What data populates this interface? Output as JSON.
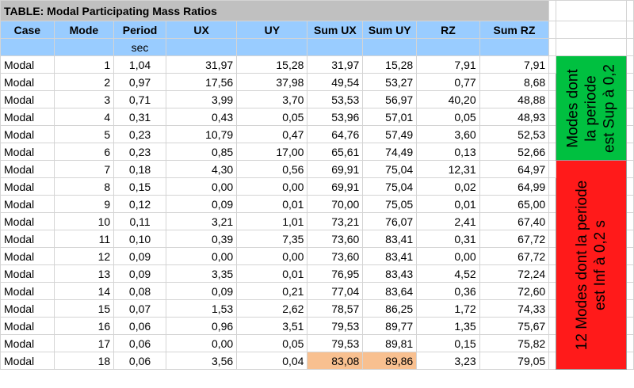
{
  "title": "TABLE:  Modal Participating Mass Ratios",
  "headers": [
    "Case",
    "Mode",
    "Period",
    "UX",
    "UY",
    "Sum UX",
    "Sum UY",
    "RZ",
    "Sum RZ"
  ],
  "units": [
    "",
    "",
    "sec",
    "",
    "",
    "",
    "",
    "",
    ""
  ],
  "rows": [
    [
      "Modal",
      "1",
      "1,04",
      "31,97",
      "15,28",
      "31,97",
      "15,28",
      "7,91",
      "7,91"
    ],
    [
      "Modal",
      "2",
      "0,97",
      "17,56",
      "37,98",
      "49,54",
      "53,27",
      "0,77",
      "8,68"
    ],
    [
      "Modal",
      "3",
      "0,71",
      "3,99",
      "3,70",
      "53,53",
      "56,97",
      "40,20",
      "48,88"
    ],
    [
      "Modal",
      "4",
      "0,31",
      "0,43",
      "0,05",
      "53,96",
      "57,01",
      "0,05",
      "48,93"
    ],
    [
      "Modal",
      "5",
      "0,23",
      "10,79",
      "0,47",
      "64,76",
      "57,49",
      "3,60",
      "52,53"
    ],
    [
      "Modal",
      "6",
      "0,23",
      "0,85",
      "17,00",
      "65,61",
      "74,49",
      "0,13",
      "52,66"
    ],
    [
      "Modal",
      "7",
      "0,18",
      "4,30",
      "0,56",
      "69,91",
      "75,04",
      "12,31",
      "64,97"
    ],
    [
      "Modal",
      "8",
      "0,15",
      "0,00",
      "0,00",
      "69,91",
      "75,04",
      "0,02",
      "64,99"
    ],
    [
      "Modal",
      "9",
      "0,12",
      "0,09",
      "0,01",
      "70,00",
      "75,05",
      "0,01",
      "65,00"
    ],
    [
      "Modal",
      "10",
      "0,11",
      "3,21",
      "1,01",
      "73,21",
      "76,07",
      "2,41",
      "67,40"
    ],
    [
      "Modal",
      "11",
      "0,10",
      "0,39",
      "7,35",
      "73,60",
      "83,41",
      "0,31",
      "67,72"
    ],
    [
      "Modal",
      "12",
      "0,09",
      "0,00",
      "0,00",
      "73,60",
      "83,41",
      "0,00",
      "67,72"
    ],
    [
      "Modal",
      "13",
      "0,09",
      "3,35",
      "0,01",
      "76,95",
      "83,43",
      "4,52",
      "72,24"
    ],
    [
      "Modal",
      "14",
      "0,08",
      "0,09",
      "0,21",
      "77,04",
      "83,64",
      "0,36",
      "72,60"
    ],
    [
      "Modal",
      "15",
      "0,07",
      "1,53",
      "2,62",
      "78,57",
      "86,25",
      "1,72",
      "74,33"
    ],
    [
      "Modal",
      "16",
      "0,06",
      "0,96",
      "3,51",
      "79,53",
      "89,77",
      "1,35",
      "75,67"
    ],
    [
      "Modal",
      "17",
      "0,06",
      "0,00",
      "0,05",
      "79,53",
      "89,81",
      "0,15",
      "75,82"
    ],
    [
      "Modal",
      "18",
      "0,06",
      "3,56",
      "0,04",
      "83,08",
      "89,86",
      "3,23",
      "79,05"
    ]
  ],
  "highlight_color": "#f8c090",
  "annotations": {
    "green": {
      "line1": "Modes dont",
      "line2": "la periode",
      "line3": "est Sup à 0,2",
      "color": "#00c040"
    },
    "red": {
      "line1": "12 Modes dont la periode",
      "line2": "est Inf à 0,2 s",
      "color": "#ff1a1a"
    }
  }
}
